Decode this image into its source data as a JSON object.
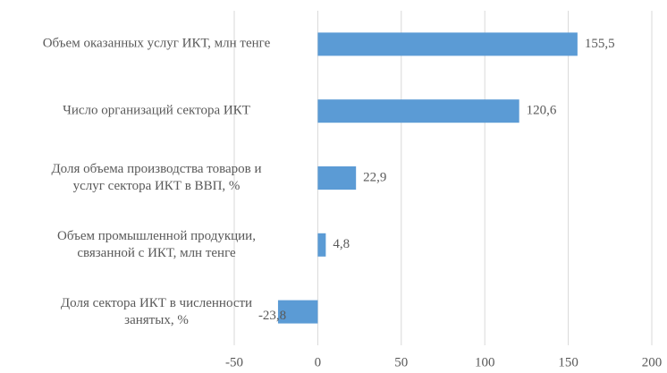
{
  "chart_data": {
    "type": "hbar",
    "categories": [
      "Объем оказанных услуг ИКТ, млн тенге",
      "Число организаций сектора ИКТ",
      "Доля объема производства товаров и\nуслуг сектора ИКТ в ВВП, %",
      "Объем промышленной продукции,\nсвязанной с ИКТ, млн тенге",
      "Доля сектора ИКТ в численности\nзанятых, %"
    ],
    "values": [
      155.5,
      120.6,
      22.9,
      4.8,
      -23.8
    ],
    "value_labels": [
      "155,5",
      "120,6",
      "22,9",
      "4,8",
      "-23,8"
    ],
    "color": "#5b9bd5",
    "xlim": [
      -50,
      200
    ],
    "xticks": [
      -50,
      0,
      50,
      100,
      150,
      200
    ],
    "grid": true
  }
}
